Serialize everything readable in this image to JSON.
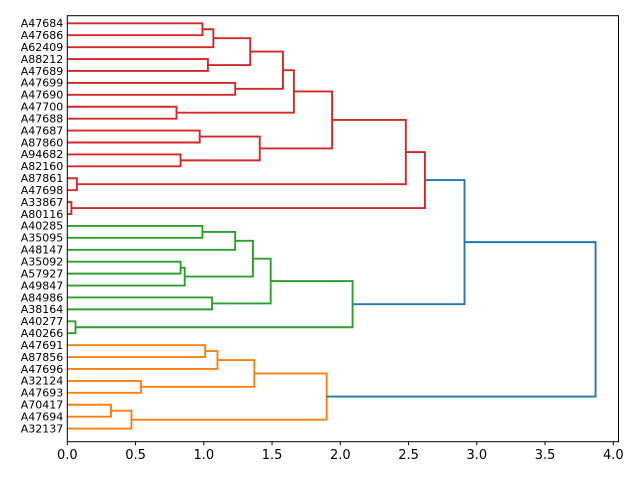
{
  "chart_data": {
    "type": "dendrogram",
    "title": "",
    "xlabel": "",
    "ylabel": "",
    "orientation": "leaves-left",
    "grid": false,
    "xlim": [
      0,
      4.04
    ],
    "x_ticks": [
      {
        "value": 0.0,
        "label": "0.0"
      },
      {
        "value": 0.5,
        "label": "0.5"
      },
      {
        "value": 1.0,
        "label": "1.0"
      },
      {
        "value": 1.5,
        "label": "1.5"
      },
      {
        "value": 2.0,
        "label": "2.0"
      },
      {
        "value": 2.5,
        "label": "2.5"
      },
      {
        "value": 3.0,
        "label": "3.0"
      },
      {
        "value": 3.5,
        "label": "3.5"
      },
      {
        "value": 4.0,
        "label": "4.0"
      }
    ],
    "leaves": [
      "A47684",
      "A47686",
      "A62409",
      "A88212",
      "A47689",
      "A47699",
      "A47690",
      "A47700",
      "A47688",
      "A47687",
      "A87860",
      "A94682",
      "A82160",
      "A87861",
      "A47698",
      "A33867",
      "A80116",
      "A40285",
      "A35095",
      "A48147",
      "A35092",
      "A57927",
      "A49847",
      "A84986",
      "A38164",
      "A40277",
      "A40266",
      "A47691",
      "A87856",
      "A47696",
      "A32124",
      "A47693",
      "A70417",
      "A47694",
      "A32137"
    ],
    "colors": {
      "red": "#d62728",
      "green": "#2ca02c",
      "orange": "#ff7f0e",
      "blue": "#1f77b4",
      "spine": "#000000",
      "text": "#000000"
    },
    "links": [
      {
        "id": "R1",
        "children": [
          "A47684",
          "A47686"
        ],
        "distance": 0.99,
        "color": "red"
      },
      {
        "id": "R2",
        "children": [
          "R1",
          "A62409"
        ],
        "distance": 1.07,
        "color": "red"
      },
      {
        "id": "R3",
        "children": [
          "A88212",
          "A47689"
        ],
        "distance": 1.03,
        "color": "red"
      },
      {
        "id": "R4",
        "children": [
          "R2",
          "R3"
        ],
        "distance": 1.34,
        "color": "red"
      },
      {
        "id": "R5",
        "children": [
          "A47699",
          "A47690"
        ],
        "distance": 1.23,
        "color": "red"
      },
      {
        "id": "R6",
        "children": [
          "R4",
          "R5"
        ],
        "distance": 1.58,
        "color": "red"
      },
      {
        "id": "R7",
        "children": [
          "A47700",
          "A47688"
        ],
        "distance": 0.8,
        "color": "red"
      },
      {
        "id": "R8",
        "children": [
          "R6",
          "R7"
        ],
        "distance": 1.66,
        "color": "red"
      },
      {
        "id": "R9",
        "children": [
          "A47687",
          "A87860"
        ],
        "distance": 0.97,
        "color": "red"
      },
      {
        "id": "R10",
        "children": [
          "A94682",
          "A82160"
        ],
        "distance": 0.83,
        "color": "red"
      },
      {
        "id": "R11",
        "children": [
          "R9",
          "R10"
        ],
        "distance": 1.41,
        "color": "red"
      },
      {
        "id": "R12",
        "children": [
          "R8",
          "R11"
        ],
        "distance": 1.94,
        "color": "red"
      },
      {
        "id": "R13",
        "children": [
          "A87861",
          "A47698"
        ],
        "distance": 0.07,
        "color": "red"
      },
      {
        "id": "R14",
        "children": [
          "R12",
          "R13"
        ],
        "distance": 2.48,
        "color": "red"
      },
      {
        "id": "R15",
        "children": [
          "A33867",
          "A80116"
        ],
        "distance": 0.03,
        "color": "red"
      },
      {
        "id": "R16",
        "children": [
          "R14",
          "R15"
        ],
        "distance": 2.62,
        "color": "red"
      },
      {
        "id": "G1",
        "children": [
          "A40285",
          "A35095"
        ],
        "distance": 0.99,
        "color": "green"
      },
      {
        "id": "G2",
        "children": [
          "G1",
          "A48147"
        ],
        "distance": 1.23,
        "color": "green"
      },
      {
        "id": "G3",
        "children": [
          "A35092",
          "A57927"
        ],
        "distance": 0.83,
        "color": "green"
      },
      {
        "id": "G4",
        "children": [
          "G3",
          "A49847"
        ],
        "distance": 0.86,
        "color": "green"
      },
      {
        "id": "G5",
        "children": [
          "G2",
          "G4"
        ],
        "distance": 1.36,
        "color": "green"
      },
      {
        "id": "G6",
        "children": [
          "A84986",
          "A38164"
        ],
        "distance": 1.06,
        "color": "green"
      },
      {
        "id": "G7",
        "children": [
          "G5",
          "G6"
        ],
        "distance": 1.49,
        "color": "green"
      },
      {
        "id": "G8",
        "children": [
          "A40277",
          "A40266"
        ],
        "distance": 0.06,
        "color": "green"
      },
      {
        "id": "G9",
        "children": [
          "G7",
          "G8"
        ],
        "distance": 2.09,
        "color": "green"
      },
      {
        "id": "O1",
        "children": [
          "A47691",
          "A87856"
        ],
        "distance": 1.01,
        "color": "orange"
      },
      {
        "id": "O2",
        "children": [
          "O1",
          "A47696"
        ],
        "distance": 1.1,
        "color": "orange"
      },
      {
        "id": "O3",
        "children": [
          "A32124",
          "A47693"
        ],
        "distance": 0.54,
        "color": "orange"
      },
      {
        "id": "O4",
        "children": [
          "O2",
          "O3"
        ],
        "distance": 1.37,
        "color": "orange"
      },
      {
        "id": "O5",
        "children": [
          "A70417",
          "A47694"
        ],
        "distance": 0.32,
        "color": "orange"
      },
      {
        "id": "O6",
        "children": [
          "O5",
          "A32137"
        ],
        "distance": 0.47,
        "color": "orange"
      },
      {
        "id": "O7",
        "children": [
          "O4",
          "O6"
        ],
        "distance": 1.9,
        "color": "orange"
      },
      {
        "id": "B1",
        "children": [
          "R16",
          "G9"
        ],
        "distance": 2.91,
        "color": "blue"
      },
      {
        "id": "B2",
        "children": [
          "B1",
          "O7"
        ],
        "distance": 3.87,
        "color": "blue"
      }
    ]
  }
}
